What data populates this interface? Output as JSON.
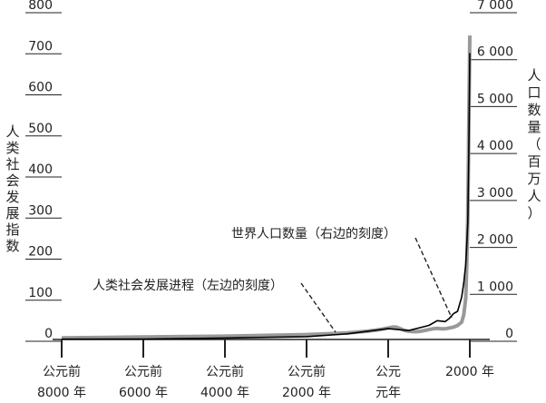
{
  "chart_data": {
    "type": "line",
    "y_left": {
      "label": "人类社会发展指数",
      "ticks": [
        "800",
        "700",
        "600",
        "500",
        "400",
        "300",
        "200",
        "100",
        "0"
      ],
      "range": [
        0,
        800
      ]
    },
    "y_right": {
      "label": "人口数量（百万人）",
      "ticks": [
        "7 000",
        "6 000",
        "5 000",
        "4 000",
        "3 000",
        "2 000",
        "1 000",
        "0"
      ],
      "range": [
        0,
        7000
      ]
    },
    "x_labels": [
      {
        "line1": "公元前",
        "line2": "8000 年"
      },
      {
        "line1": "公元前",
        "line2": "6000 年"
      },
      {
        "line1": "公元前",
        "line2": "4000 年"
      },
      {
        "line1": "公元前",
        "line2": "2000 年"
      },
      {
        "line1": "公元",
        "line2": "元年"
      },
      {
        "line1": "2000 年",
        "line2": ""
      }
    ],
    "x_range": [
      -8000,
      2000
    ],
    "series": [
      {
        "name": "人类社会发展进程",
        "axis": "left",
        "color": "#999999",
        "x": [
          -8000,
          -6000,
          -4000,
          -3000,
          -2000,
          -1000,
          -500,
          -200,
          0,
          100,
          200,
          300,
          400,
          500,
          600,
          700,
          800,
          900,
          1000,
          1100,
          1200,
          1300,
          1400,
          1500,
          1600,
          1700,
          1800,
          1850,
          1900,
          1925,
          1950,
          1975,
          2000
        ],
        "values": [
          4,
          6,
          8,
          10,
          12,
          16,
          20,
          24,
          28,
          30,
          30,
          26,
          22,
          20,
          19,
          19,
          20,
          22,
          24,
          26,
          27,
          26,
          26,
          28,
          30,
          34,
          42,
          60,
          100,
          180,
          300,
          520,
          740
        ]
      },
      {
        "name": "世界人口数量",
        "axis": "right",
        "color": "#000000",
        "x": [
          -8000,
          -6000,
          -4000,
          -3000,
          -2000,
          -1000,
          0,
          500,
          1000,
          1200,
          1400,
          1500,
          1600,
          1700,
          1800,
          1850,
          1900,
          1925,
          1950,
          1975,
          2000
        ],
        "values": [
          5,
          10,
          30,
          45,
          60,
          120,
          230,
          190,
          300,
          400,
          380,
          450,
          550,
          600,
          900,
          1200,
          1600,
          2000,
          2500,
          4000,
          6100
        ]
      }
    ],
    "annotations": [
      {
        "text": "世界人口数量（右边的刻度）",
        "series": "世界人口数量"
      },
      {
        "text": "人类社会发展进程（左边的刻度）",
        "series": "人类社会发展进程"
      }
    ],
    "grid": false
  }
}
